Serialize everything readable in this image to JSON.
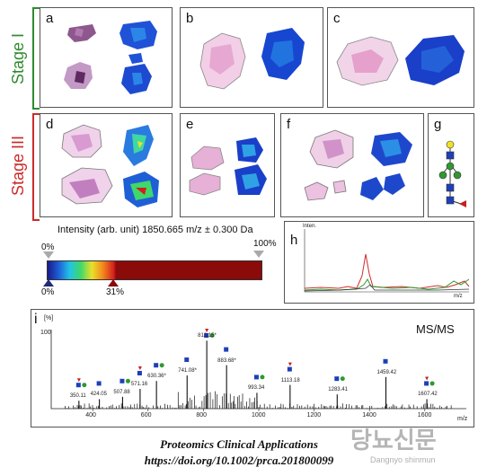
{
  "stages": {
    "stage1": {
      "label": "Stage I",
      "color": "#2e8b2e"
    },
    "stage3": {
      "label": "Stage III",
      "color": "#cc2a2a"
    }
  },
  "panel_labels": {
    "a": "a",
    "b": "b",
    "c": "c",
    "d": "d",
    "e": "e",
    "f": "f",
    "g": "g",
    "h": "h",
    "i": "i"
  },
  "colorbar": {
    "title": "Intensity (arb. unit) 1850.665 m/z ± 0.300 Da",
    "left_pct": "0%",
    "right_pct": "100%",
    "bottom_left_pct": "0%",
    "bottom_marker_pct": "31%",
    "colors": [
      "#1a1a8a",
      "#1f5fd6",
      "#22c3e6",
      "#3fd86a",
      "#e8e12a",
      "#f2891c",
      "#d21e1e",
      "#8b0a0a"
    ]
  },
  "spectrum_h": {
    "y_label": "Inten.",
    "x_label": "m/z",
    "series_colors": [
      "#d12b2b",
      "#2e9a2e",
      "#333333"
    ]
  },
  "msms": {
    "y_unit": "[%]",
    "y_max_label": "100",
    "title": "MS/MS",
    "x_unit": "m/z",
    "x_ticks": [
      "400",
      "600",
      "800",
      "1000",
      "1200",
      "1400",
      "1600"
    ],
    "peak_labels": [
      {
        "text": "350.11"
      },
      {
        "text": "424.05"
      },
      {
        "text": "507.88"
      },
      {
        "text": "571.16"
      },
      {
        "text": "630.36*"
      },
      {
        "text": "741.08*"
      },
      {
        "text": "812.15*"
      },
      {
        "text": "883.68*"
      },
      {
        "text": "993.34"
      },
      {
        "text": "1113.18"
      },
      {
        "text": "1283.41"
      },
      {
        "text": "1459.42"
      },
      {
        "text": "1607.42"
      }
    ]
  },
  "footer": {
    "journal": "Proteomics Clinical Applications",
    "doi": "https://doi.org/10.1002/prca.201800099"
  },
  "watermark": {
    "title": "당뇨신문",
    "subtitle": "Dangnyo shinmun"
  }
}
